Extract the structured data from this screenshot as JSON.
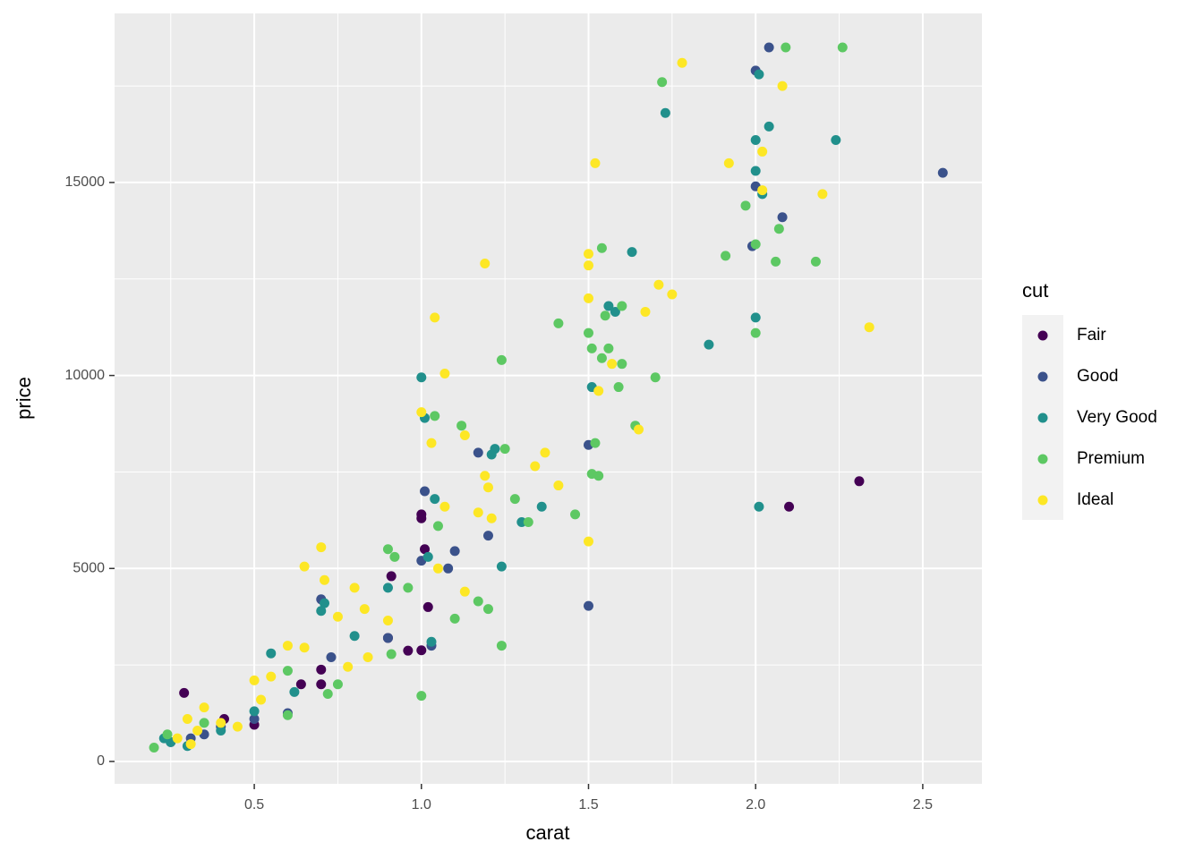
{
  "chart_data": {
    "type": "scatter",
    "x_label": "carat",
    "y_label": "price",
    "legend_title": "cut",
    "legend_position": "right",
    "grid": true,
    "xlim": [
      0.082,
      2.677
    ],
    "ylim": [
      -580,
      19380
    ],
    "xticks": [
      0.5,
      {
        "value": 1.0,
        "label": "1.0"
      },
      1.5,
      {
        "value": 2.0,
        "label": "2.0"
      },
      2.5
    ],
    "yticks": [
      0,
      5000,
      10000,
      15000
    ],
    "x_minor_grid": [
      0.25,
      0.75,
      1.25,
      1.75,
      2.25
    ],
    "y_minor_grid": [
      2500,
      7500,
      12500,
      17500
    ],
    "series": [
      {
        "name": "Fair",
        "color": "#440154",
        "x": [
          0.29,
          0.7,
          0.7,
          0.91,
          0.96,
          1.0,
          1.0,
          1.01,
          2.1,
          2.31,
          0.5,
          0.41,
          0.9,
          1.02,
          0.64,
          1.0
        ],
        "values": [
          1776,
          2000,
          2380,
          4800,
          2870,
          2880,
          6400,
          5500,
          6600,
          7260,
          950,
          1100,
          3200,
          4000,
          2000,
          6300
        ]
      },
      {
        "name": "Good",
        "color": "#3B528B",
        "x": [
          2.04,
          2.0,
          2.56,
          2.0,
          2.08,
          1.99,
          1.5,
          1.5,
          1.17,
          1.2,
          1.1,
          1.08,
          0.7,
          0.5,
          0.31,
          0.25,
          0.6,
          0.9,
          1.0,
          1.03,
          0.73,
          0.35,
          0.4,
          1.01
        ],
        "values": [
          18500,
          17900,
          15250,
          14900,
          14100,
          13350,
          8200,
          4030,
          8000,
          5850,
          5450,
          5000,
          4200,
          1100,
          600,
          500,
          1250,
          3200,
          5200,
          3000,
          2700,
          700,
          900,
          7000
        ]
      },
      {
        "name": "Very Good",
        "color": "#21908C",
        "x": [
          2.01,
          1.73,
          2.04,
          2.24,
          2.0,
          2.0,
          2.02,
          1.63,
          1.56,
          1.58,
          2.0,
          1.86,
          1.51,
          1.0,
          1.01,
          1.22,
          1.21,
          1.36,
          1.3,
          1.24,
          2.01,
          1.04,
          0.9,
          0.71,
          0.55,
          0.5,
          0.3,
          0.25,
          0.62,
          0.8,
          0.23,
          0.4,
          0.7,
          1.02,
          1.03
        ],
        "values": [
          17800,
          16800,
          16450,
          16100,
          16100,
          15300,
          14700,
          13200,
          11800,
          11650,
          11500,
          10800,
          9700,
          9950,
          8900,
          8100,
          7950,
          6600,
          6200,
          5050,
          6600,
          6800,
          4500,
          4100,
          2800,
          1300,
          400,
          500,
          1800,
          3250,
          600,
          800,
          3900,
          5300,
          3100
        ]
      },
      {
        "name": "Premium",
        "color": "#5DC863",
        "x": [
          2.09,
          2.26,
          1.72,
          1.54,
          2.06,
          2.18,
          1.91,
          1.97,
          2.07,
          2.0,
          1.41,
          1.6,
          1.55,
          1.5,
          1.51,
          1.56,
          2.0,
          1.24,
          1.54,
          1.6,
          1.7,
          1.59,
          1.64,
          1.52,
          1.51,
          1.53,
          1.04,
          1.12,
          1.25,
          1.28,
          1.32,
          1.46,
          1.24,
          1.0,
          1.1,
          1.2,
          0.9,
          0.92,
          0.91,
          0.75,
          0.6,
          0.2,
          0.24,
          0.35,
          0.6,
          0.72,
          1.05,
          0.96,
          1.17
        ],
        "values": [
          18500,
          18500,
          17600,
          13300,
          12950,
          12950,
          13100,
          14400,
          13800,
          13400,
          11350,
          11800,
          11550,
          11100,
          10700,
          10700,
          11100,
          10400,
          10450,
          10300,
          9950,
          9700,
          8700,
          8250,
          7450,
          7400,
          8950,
          8700,
          8100,
          6800,
          6200,
          6400,
          3000,
          1700,
          3700,
          3950,
          5500,
          5300,
          2780,
          2000,
          1200,
          360,
          700,
          1000,
          2350,
          1750,
          6100,
          4500,
          4150
        ]
      },
      {
        "name": "Ideal",
        "color": "#FDE725",
        "x": [
          1.78,
          2.08,
          1.52,
          1.92,
          2.02,
          2.02,
          2.2,
          2.34,
          1.19,
          1.5,
          1.5,
          1.5,
          1.71,
          1.75,
          1.67,
          1.04,
          1.57,
          1.53,
          1.07,
          1.0,
          1.03,
          1.13,
          1.37,
          1.34,
          1.41,
          1.2,
          1.19,
          1.5,
          1.65,
          0.7,
          0.65,
          0.71,
          0.8,
          0.9,
          0.83,
          0.75,
          0.6,
          0.65,
          0.55,
          0.5,
          0.52,
          0.35,
          0.3,
          0.4,
          0.33,
          0.27,
          0.45,
          0.78,
          0.84,
          1.07,
          1.17,
          1.21,
          1.05,
          1.13,
          0.31
        ],
        "values": [
          18100,
          17500,
          15500,
          15500,
          15800,
          14800,
          14700,
          11250,
          12900,
          13150,
          12850,
          12000,
          12350,
          12100,
          11650,
          11500,
          10300,
          9600,
          10050,
          9050,
          8250,
          8450,
          8000,
          7650,
          7150,
          7100,
          7400,
          5700,
          8600,
          5550,
          5050,
          4700,
          4500,
          3650,
          3950,
          3750,
          3000,
          2950,
          2200,
          2100,
          1600,
          1400,
          1100,
          1000,
          800,
          600,
          900,
          2450,
          2700,
          6600,
          6450,
          6300,
          5000,
          4400,
          450
        ]
      }
    ]
  }
}
